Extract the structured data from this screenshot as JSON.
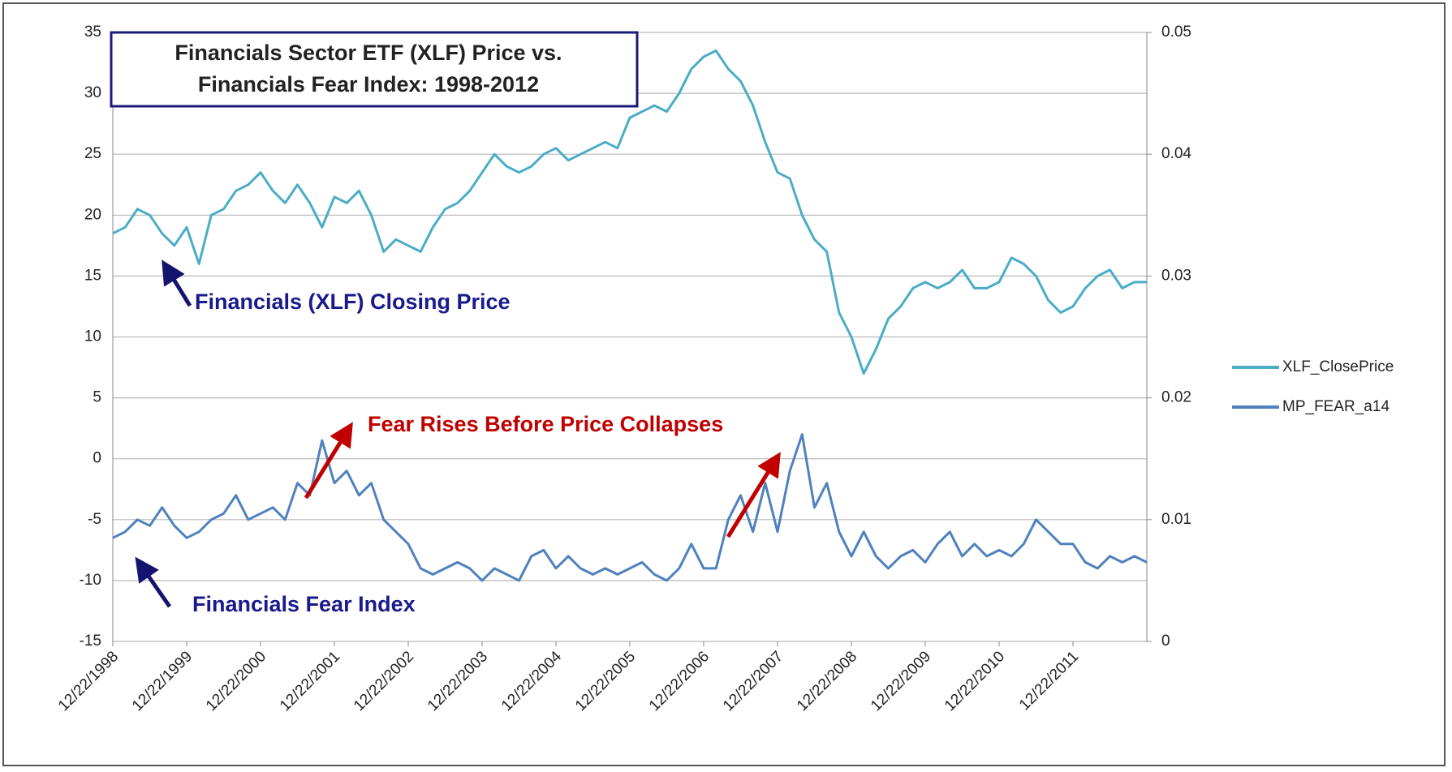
{
  "chart_data": {
    "type": "line",
    "annotations": [
      "Financials Sector ETF (XLF) Price vs.",
      "Financials Fear Index:  1998-2012",
      "Financials (XLF) Closing Price",
      "Financials Fear Index",
      "Fear Rises Before Price Collapses"
    ],
    "categories": [
      "12/22/1998",
      null,
      null,
      null,
      null,
      null,
      "12/22/1999",
      null,
      null,
      null,
      null,
      null,
      "12/22/2000",
      null,
      null,
      null,
      null,
      null,
      "12/22/2001",
      null,
      null,
      null,
      null,
      null,
      "12/22/2002",
      null,
      null,
      null,
      null,
      null,
      "12/22/2003",
      null,
      null,
      null,
      null,
      null,
      "12/22/2004",
      null,
      null,
      null,
      null,
      null,
      "12/22/2005",
      null,
      null,
      null,
      null,
      null,
      "12/22/2006",
      null,
      null,
      null,
      null,
      null,
      "12/22/2007",
      null,
      null,
      null,
      null,
      null,
      "12/22/2008",
      null,
      null,
      null,
      null,
      null,
      "12/22/2009",
      null,
      null,
      null,
      null,
      null,
      "12/22/2010",
      null,
      null,
      null,
      null,
      null,
      "12/22/2011",
      null,
      null,
      null,
      null,
      null,
      null
    ],
    "series": [
      {
        "name": "XLF_ClosePrice",
        "color": "#4bacc6",
        "values": [
          18.5,
          19,
          20.5,
          20,
          18.5,
          17.5,
          19,
          16,
          20,
          20.5,
          22,
          22.5,
          23.5,
          22,
          21,
          22.5,
          21,
          19,
          21.5,
          21,
          22,
          20,
          17,
          18,
          17.5,
          17,
          19,
          20.5,
          21,
          22,
          23.5,
          25,
          24,
          23.5,
          24,
          25,
          25.5,
          24.5,
          25,
          25.5,
          26,
          25.5,
          28,
          28.5,
          29,
          28.5,
          30,
          32,
          33,
          33.5,
          32,
          31,
          29,
          26,
          23.5,
          23,
          20,
          18,
          17,
          12,
          10,
          7,
          9,
          11.5,
          12.5,
          14,
          14.5,
          14,
          14.5,
          15.5,
          14,
          14,
          14.5,
          16.5,
          16,
          15,
          13,
          12,
          12.5,
          14,
          15,
          15.5,
          14,
          14.5,
          14.5
        ]
      },
      {
        "name": "MP_FEAR_a14",
        "color": "#4f81bd",
        "axis": "y2",
        "values": [
          0.0085,
          0.009,
          0.01,
          0.0095,
          0.011,
          0.0095,
          0.0085,
          0.009,
          0.01,
          0.0105,
          0.012,
          0.01,
          0.0105,
          0.011,
          0.01,
          0.013,
          0.012,
          0.0165,
          0.013,
          0.014,
          0.012,
          0.013,
          0.01,
          0.009,
          0.008,
          0.006,
          0.0055,
          0.006,
          0.0065,
          0.006,
          0.005,
          0.006,
          0.0055,
          0.005,
          0.007,
          0.0075,
          0.006,
          0.007,
          0.006,
          0.0055,
          0.006,
          0.0055,
          0.006,
          0.0065,
          0.0055,
          0.005,
          0.006,
          0.008,
          0.006,
          0.006,
          0.01,
          0.012,
          0.009,
          0.013,
          0.009,
          0.014,
          0.017,
          0.011,
          0.013,
          0.009,
          0.007,
          0.009,
          0.007,
          0.006,
          0.007,
          0.0075,
          0.0065,
          0.008,
          0.009,
          0.007,
          0.008,
          0.007,
          0.0075,
          0.007,
          0.008,
          0.01,
          0.009,
          0.008,
          0.008,
          0.0065,
          0.006,
          0.007,
          0.0065,
          0.007,
          0.0065
        ]
      }
    ],
    "ylim": [
      -15,
      35
    ],
    "yticks": [
      -15,
      -10,
      -5,
      0,
      5,
      10,
      15,
      20,
      25,
      30,
      35
    ],
    "y2lim": [
      0,
      0.05
    ],
    "y2ticks": [
      0,
      0.01,
      0.02,
      0.03,
      0.04,
      0.05
    ],
    "grid": true,
    "legend": "right"
  }
}
